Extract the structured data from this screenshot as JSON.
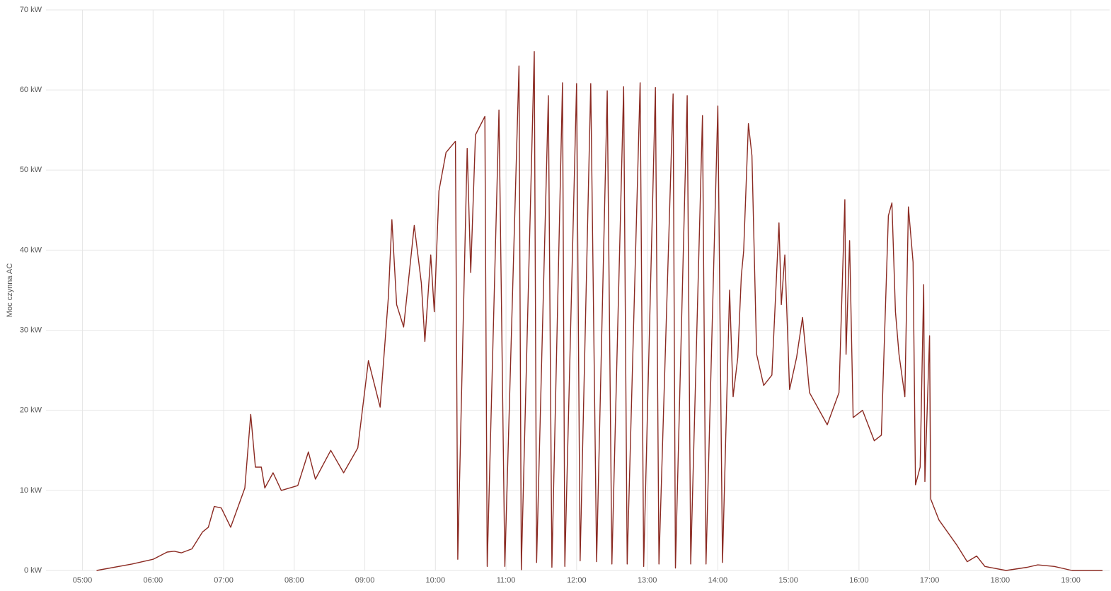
{
  "chart_data": {
    "type": "line",
    "y_label": "Moc czynna AC",
    "color": "#8b2a22",
    "grid": true,
    "x": [
      "05:12",
      "05:42",
      "06:00",
      "06:12",
      "06:18",
      "06:24",
      "06:33",
      "06:42",
      "06:47",
      "06:52",
      "06:58",
      "07:06",
      "07:18",
      "07:23",
      "07:27",
      "07:32",
      "07:35",
      "07:42",
      "07:49",
      "08:03",
      "08:12",
      "08:18",
      "08:31",
      "08:42",
      "08:54",
      "09:03",
      "09:13",
      "09:20",
      "09:23",
      "09:27",
      "09:33",
      "09:42",
      "09:48",
      "09:51",
      "09:56",
      "09:59",
      "10:03",
      "10:09",
      "10:17",
      "10:19",
      "10:27",
      "10:30",
      "10:34",
      "10:42",
      "10:44",
      "10:54",
      "10:59",
      "11:11",
      "11:13",
      "11:24",
      "11:26",
      "11:36",
      "11:39",
      "11:48",
      "11:50",
      "12:00",
      "12:03",
      "12:12",
      "12:17",
      "12:26",
      "12:30",
      "12:40",
      "12:43",
      "12:54",
      "12:57",
      "13:07",
      "13:10",
      "13:22",
      "13:24",
      "13:34",
      "13:37",
      "13:47",
      "13:50",
      "14:00",
      "14:04",
      "14:10",
      "14:13",
      "14:17",
      "14:20",
      "14:22",
      "14:26",
      "14:29",
      "14:33",
      "14:39",
      "14:46",
      "14:52",
      "14:54",
      "14:57",
      "15:01",
      "15:07",
      "15:12",
      "15:18",
      "15:33",
      "15:43",
      "15:48",
      "15:49",
      "15:52",
      "15:55",
      "16:03",
      "16:13",
      "16:19",
      "16:25",
      "16:28",
      "16:31",
      "16:34",
      "16:39",
      "16:42",
      "16:46",
      "16:48",
      "16:52",
      "16:55",
      "16:56",
      "17:00",
      "17:01",
      "17:08",
      "17:23",
      "17:32",
      "17:40",
      "17:47",
      "18:05",
      "18:23",
      "18:32",
      "18:46",
      "19:01",
      "19:27"
    ],
    "values": [
      0,
      0.8,
      1.4,
      2.3,
      2.4,
      2.2,
      2.7,
      4.8,
      5.4,
      8.0,
      7.8,
      5.4,
      10.3,
      19.5,
      12.9,
      12.9,
      10.3,
      12.2,
      10.0,
      10.6,
      14.8,
      11.4,
      15.0,
      12.2,
      15.3,
      26.2,
      20.4,
      34.1,
      43.8,
      33.2,
      30.4,
      43.1,
      35.9,
      28.6,
      39.4,
      32.3,
      47.4,
      52.2,
      53.6,
      1.4,
      52.7,
      37.2,
      54.4,
      56.7,
      0.5,
      57.5,
      0.5,
      63.0,
      0.1,
      64.8,
      1.0,
      59.3,
      0.4,
      60.9,
      0.5,
      60.8,
      1.2,
      60.8,
      1.1,
      59.9,
      0.8,
      60.4,
      0.8,
      60.9,
      0.5,
      60.3,
      0.8,
      59.5,
      0.3,
      59.3,
      0.8,
      56.8,
      0.8,
      58.0,
      1.0,
      35.0,
      21.7,
      26.6,
      36.8,
      39.9,
      55.8,
      51.8,
      27.0,
      23.1,
      24.4,
      43.4,
      33.2,
      39.4,
      22.6,
      26.6,
      31.6,
      22.2,
      18.2,
      22.2,
      46.3,
      27.0,
      41.2,
      19.1,
      20.0,
      16.2,
      16.9,
      44.3,
      45.9,
      32.3,
      27.0,
      21.7,
      45.4,
      38.5,
      10.7,
      12.9,
      35.7,
      11.1,
      29.3,
      8.9,
      6.3,
      3.2,
      1.1,
      1.8,
      0.5,
      0,
      0.4,
      0.7,
      0.5,
      0,
      0
    ],
    "xlim": [
      "04:29",
      "19:33"
    ],
    "xticks": [
      "05:00",
      "06:00",
      "07:00",
      "08:00",
      "09:00",
      "10:00",
      "11:00",
      "12:00",
      "13:00",
      "14:00",
      "15:00",
      "16:00",
      "17:00",
      "18:00",
      "19:00"
    ],
    "ylim": [
      0,
      70
    ],
    "yticks": [
      {
        "value": 0,
        "label": "0 kW"
      },
      {
        "value": 10,
        "label": "10 kW"
      },
      {
        "value": 20,
        "label": "20 kW"
      },
      {
        "value": 30,
        "label": "30 kW"
      },
      {
        "value": 40,
        "label": "40 kW"
      },
      {
        "value": 50,
        "label": "50 kW"
      },
      {
        "value": 60,
        "label": "60 kW"
      },
      {
        "value": 70,
        "label": "70 kW"
      }
    ]
  }
}
